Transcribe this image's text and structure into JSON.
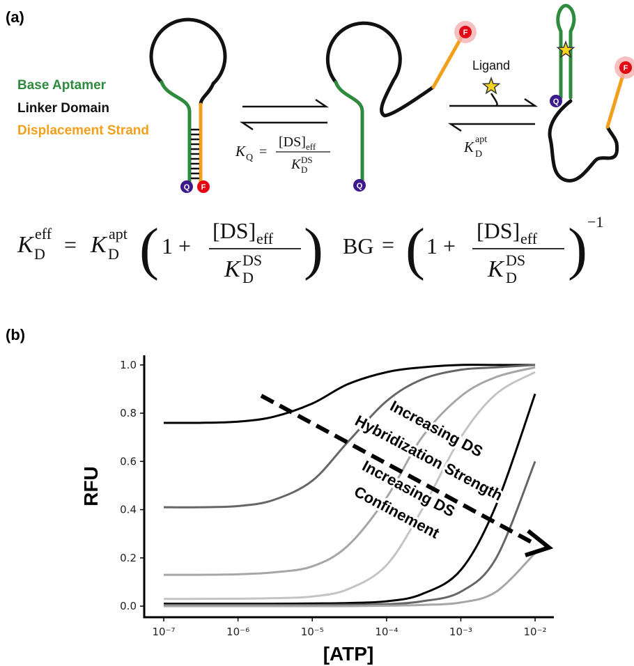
{
  "panel_a": {
    "label": "(a)",
    "legend": [
      "Base Aptamer",
      "Linker Domain",
      "Displacement Strand"
    ],
    "ligand": "Ligand",
    "quencher": "Q",
    "fluorophore": "F",
    "eq_kq": [
      "K",
      "Q",
      "=",
      "[DS]",
      "eff",
      "K",
      "D",
      "DS"
    ],
    "eq_kapt": [
      "K",
      "D",
      "apt"
    ],
    "eq_keff": [
      "K",
      "eff",
      "D",
      "=",
      "K",
      "apt",
      "D",
      "(",
      "1 +",
      "[DS]",
      "eff",
      "K",
      "D",
      "DS",
      ")"
    ],
    "eq_bg": [
      "BG",
      "=",
      "(",
      "1 +",
      "[DS]",
      "eff",
      "K",
      "D",
      "DS",
      ")",
      "−1"
    ]
  },
  "panel_b_label": "(b)",
  "chart_data": {
    "type": "line",
    "xlabel": "[ATP]",
    "ylabel": "RFU",
    "xscale": "log",
    "x": [
      1e-07,
      3e-07,
      1e-06,
      3e-06,
      1e-05,
      3e-05,
      0.0001,
      0.0003,
      0.001,
      0.003,
      0.01
    ],
    "series": [
      {
        "color": "#000000",
        "values": [
          0.76,
          0.76,
          0.765,
          0.785,
          0.84,
          0.92,
          0.97,
          0.99,
          1.0,
          1.0,
          1.0
        ]
      },
      {
        "color": "#666666",
        "values": [
          0.41,
          0.41,
          0.415,
          0.44,
          0.52,
          0.68,
          0.85,
          0.94,
          0.98,
          0.99,
          1.0
        ]
      },
      {
        "color": "#a6a6a6",
        "values": [
          0.13,
          0.13,
          0.132,
          0.14,
          0.165,
          0.25,
          0.45,
          0.7,
          0.87,
          0.95,
          0.99
        ]
      },
      {
        "color": "#c4c4c4",
        "values": [
          0.03,
          0.03,
          0.031,
          0.033,
          0.04,
          0.07,
          0.17,
          0.4,
          0.7,
          0.88,
          0.97
        ]
      },
      {
        "color": "#000000",
        "values": [
          0.01,
          0.01,
          0.01,
          0.01,
          0.011,
          0.013,
          0.02,
          0.05,
          0.15,
          0.42,
          0.88
        ]
      },
      {
        "color": "#666666",
        "values": [
          0.005,
          0.005,
          0.005,
          0.005,
          0.005,
          0.006,
          0.008,
          0.02,
          0.06,
          0.2,
          0.6
        ]
      },
      {
        "color": "#a6a6a6",
        "values": [
          0,
          0,
          0,
          0,
          0,
          0,
          0.002,
          0.005,
          0.015,
          0.06,
          0.22
        ]
      }
    ],
    "xlim": [
      5.46e-08,
      0.0179
    ],
    "ylim": [
      -0.046,
      1.04
    ],
    "xticks": [
      {
        "value": 1e-07,
        "label": "10⁻⁷"
      },
      {
        "value": 1e-06,
        "label": "10⁻⁶"
      },
      {
        "value": 1e-05,
        "label": "10⁻⁵"
      },
      {
        "value": 0.0001,
        "label": "10⁻⁴"
      },
      {
        "value": 0.001,
        "label": "10⁻³"
      },
      {
        "value": 0.01,
        "label": "10⁻²"
      }
    ],
    "yticks": [
      {
        "value": 0,
        "label": "0.0"
      },
      0.2,
      0.4,
      0.6,
      0.8,
      {
        "value": 1,
        "label": "1.0"
      }
    ],
    "annotations": [
      "Increasing DS",
      "Hybridization Strength",
      "Increasing DS",
      "Confinement"
    ]
  }
}
